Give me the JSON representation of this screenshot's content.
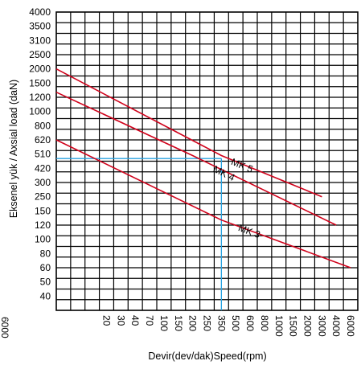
{
  "chart_data": {
    "type": "line",
    "xlabel": "Devir(dev/dak)Speed(rpm)",
    "ylabel": "Eksenel yük / Axsial load (daN)",
    "x_ticks": [
      "20",
      "30",
      "40",
      "70",
      "100",
      "150",
      "200",
      "250",
      "350",
      "500",
      "600",
      "800",
      "1000",
      "1500",
      "2000",
      "3000",
      "4000",
      "6000"
    ],
    "y_ticks": [
      "4000",
      "3500",
      "3100",
      "2500",
      "2000",
      "1500",
      "1200",
      "1000",
      "800",
      "620",
      "510",
      "420",
      "300",
      "250",
      "150",
      "120",
      "100",
      "80",
      "60",
      "50",
      "40"
    ],
    "edge_label": "6000",
    "series": [
      {
        "name": "MK 5",
        "x": [
          0,
          350,
          3000
        ],
        "y": [
          2000,
          500,
          250
        ]
      },
      {
        "name": "MK 4",
        "x": [
          0,
          200,
          4000
        ],
        "y": [
          1300,
          500,
          120
        ]
      },
      {
        "name": "MK 3",
        "x": [
          0,
          350,
          6000
        ],
        "y": [
          620,
          130,
          60
        ]
      }
    ],
    "reference_point": {
      "x": 350,
      "y": 480
    },
    "grid": true,
    "colors": {
      "series": "#d0021b",
      "reference": "#29a3e0",
      "grid": "#000000"
    }
  }
}
